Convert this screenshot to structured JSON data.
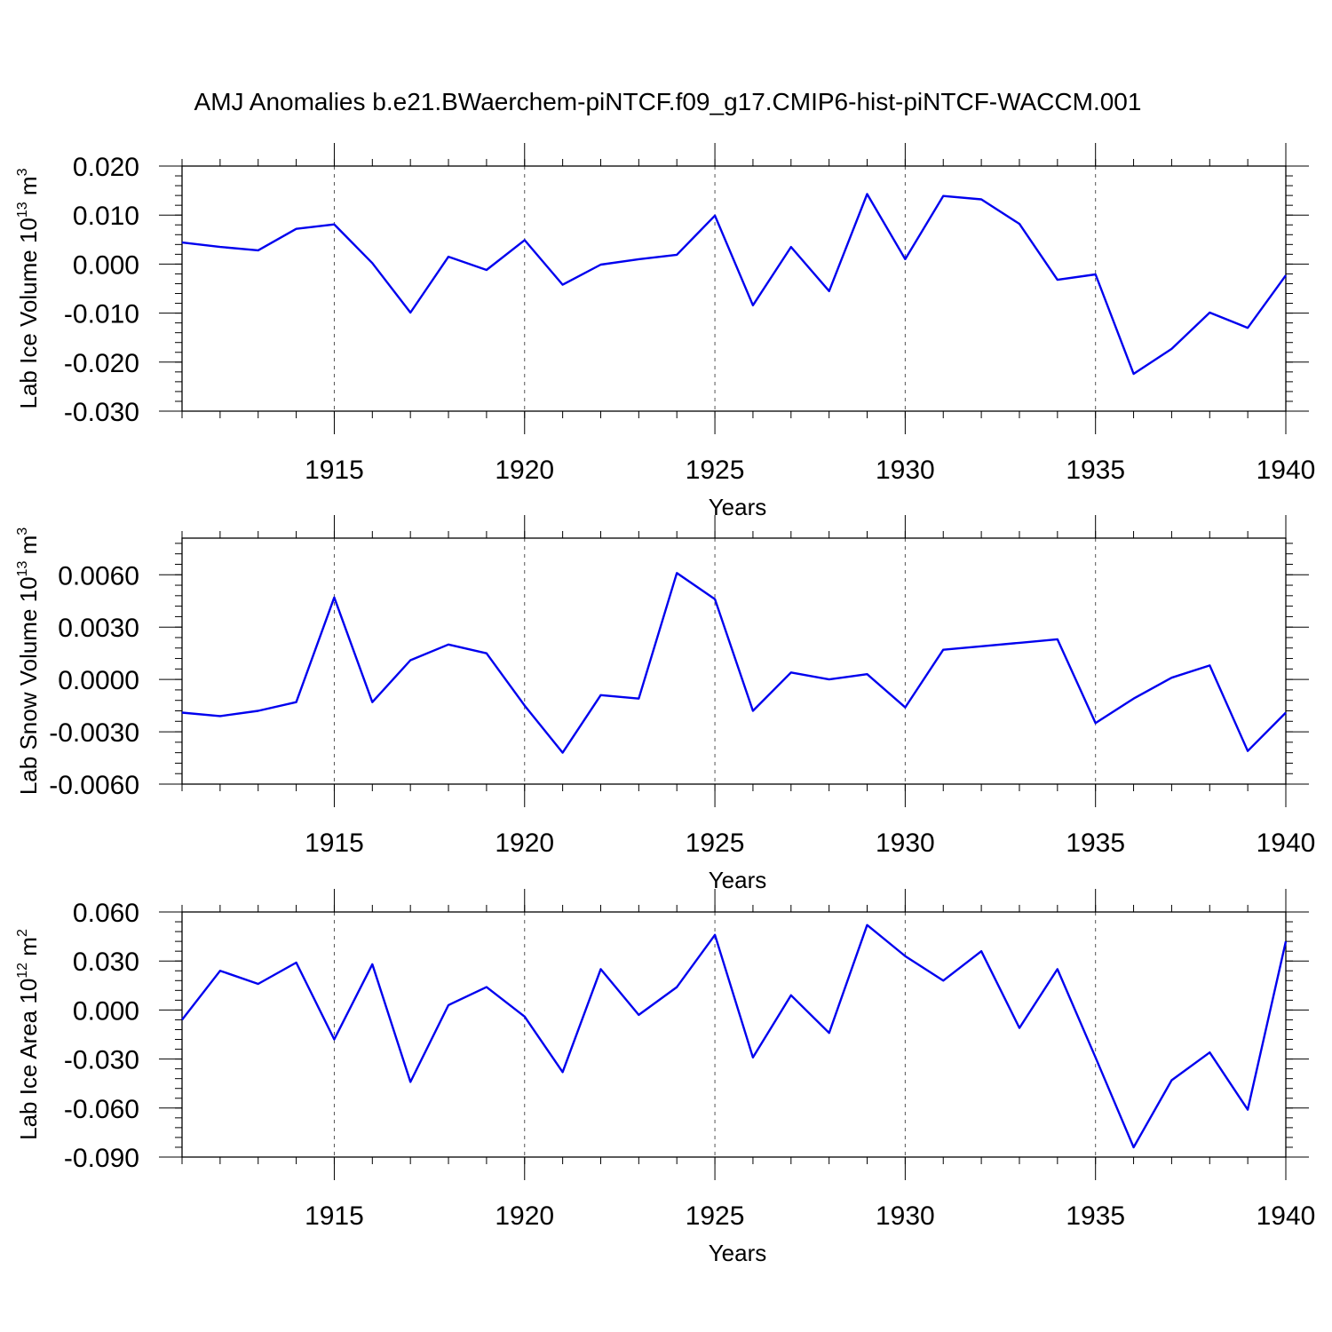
{
  "title": "AMJ Anomalies b.e21.BWaerchem-piNTCF.f09_g17.CMIP6-hist-piNTCF-WACCM.001",
  "line_color": "#0000ee",
  "chart_data": [
    {
      "type": "line",
      "ylabel_text": "Lab Ice Volume 10",
      "ylabel_exp": "13",
      "ylabel_unit": " m",
      "ylabel_unit_exp": "3",
      "xlabel": "Years",
      "xlim": [
        1911,
        1940
      ],
      "ylim": [
        -0.03,
        0.02
      ],
      "yticks": [
        -0.03,
        -0.02,
        -0.01,
        0.0,
        0.01,
        0.02
      ],
      "ytick_labels": [
        "-0.030",
        "-0.020",
        "-0.010",
        "0.000",
        "0.010",
        "0.020"
      ],
      "yminor_step": 0.002,
      "xticks": [
        1915,
        1920,
        1925,
        1930,
        1935,
        1940
      ],
      "xtick_labels": [
        "1915",
        "1920",
        "1925",
        "1930",
        "1935",
        "1940"
      ],
      "x": [
        1911,
        1912,
        1913,
        1914,
        1915,
        1916,
        1917,
        1918,
        1919,
        1920,
        1921,
        1922,
        1923,
        1924,
        1925,
        1926,
        1927,
        1928,
        1929,
        1930,
        1931,
        1932,
        1933,
        1934,
        1935,
        1936,
        1937,
        1938,
        1939,
        1940
      ],
      "values": [
        0.0044,
        0.0035,
        0.0028,
        0.0072,
        0.0081,
        0.0002,
        -0.0099,
        0.0015,
        -0.0012,
        0.0049,
        -0.0042,
        -0.0001,
        0.001,
        0.0019,
        0.0099,
        -0.0084,
        0.0035,
        -0.0055,
        0.0143,
        0.001,
        0.0139,
        0.0132,
        0.0082,
        -0.0032,
        -0.0021,
        -0.0224,
        -0.0173,
        -0.0099,
        -0.013,
        -0.0023
      ]
    },
    {
      "type": "line",
      "ylabel_text": "Lab Snow Volume 10",
      "ylabel_exp": "13",
      "ylabel_unit": " m",
      "ylabel_unit_exp": "3",
      "xlabel": "Years",
      "xlim": [
        1911,
        1940
      ],
      "ylim": [
        -0.006,
        0.0081
      ],
      "yticks": [
        -0.006,
        -0.003,
        0.0,
        0.003,
        0.006
      ],
      "ytick_labels": [
        "-0.0060",
        "-0.0030",
        "0.0000",
        "0.0030",
        "0.0060"
      ],
      "yminor_step": 0.0006,
      "xticks": [
        1915,
        1920,
        1925,
        1930,
        1935,
        1940
      ],
      "xtick_labels": [
        "1915",
        "1920",
        "1925",
        "1930",
        "1935",
        "1940"
      ],
      "x": [
        1911,
        1912,
        1913,
        1914,
        1915,
        1916,
        1917,
        1918,
        1919,
        1920,
        1921,
        1922,
        1923,
        1924,
        1925,
        1926,
        1927,
        1928,
        1929,
        1930,
        1931,
        1932,
        1933,
        1934,
        1935,
        1936,
        1937,
        1938,
        1939,
        1940
      ],
      "values": [
        -0.0019,
        -0.0021,
        -0.0018,
        -0.0013,
        0.0047,
        -0.0013,
        0.0011,
        0.002,
        0.0015,
        -0.0015,
        -0.0042,
        -0.0009,
        -0.0011,
        0.0061,
        0.0046,
        -0.0018,
        0.0004,
        0.0,
        0.0003,
        -0.0016,
        0.0017,
        0.0019,
        0.0021,
        0.0023,
        -0.0025,
        -0.0011,
        0.0001,
        0.0008,
        -0.0041,
        -0.0019
      ]
    },
    {
      "type": "line",
      "ylabel_text": "Lab Ice Area 10",
      "ylabel_exp": "12",
      "ylabel_unit": " m",
      "ylabel_unit_exp": "2",
      "xlabel": "Years",
      "xlim": [
        1911,
        1940
      ],
      "ylim": [
        -0.09,
        0.06
      ],
      "yticks": [
        -0.09,
        -0.06,
        -0.03,
        0.0,
        0.03,
        0.06
      ],
      "ytick_labels": [
        "-0.090",
        "-0.060",
        "-0.030",
        "0.000",
        "0.030",
        "0.060"
      ],
      "yminor_step": 0.006,
      "xticks": [
        1915,
        1920,
        1925,
        1930,
        1935,
        1940
      ],
      "xtick_labels": [
        "1915",
        "1920",
        "1925",
        "1930",
        "1935",
        "1940"
      ],
      "x": [
        1911,
        1912,
        1913,
        1914,
        1915,
        1916,
        1917,
        1918,
        1919,
        1920,
        1921,
        1922,
        1923,
        1924,
        1925,
        1926,
        1927,
        1928,
        1929,
        1930,
        1931,
        1932,
        1933,
        1934,
        1935,
        1936,
        1937,
        1938,
        1939,
        1940
      ],
      "values": [
        -0.006,
        0.024,
        0.016,
        0.029,
        -0.018,
        0.028,
        -0.044,
        0.003,
        0.014,
        -0.004,
        -0.038,
        0.025,
        -0.003,
        0.014,
        0.046,
        -0.029,
        0.009,
        -0.014,
        0.052,
        0.033,
        0.018,
        0.036,
        -0.011,
        0.025,
        -0.029,
        -0.084,
        -0.043,
        -0.026,
        -0.061,
        0.042
      ]
    }
  ]
}
